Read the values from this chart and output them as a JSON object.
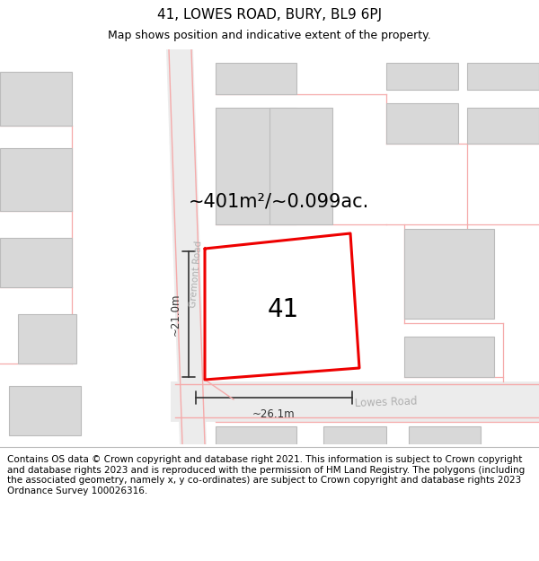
{
  "title": "41, LOWES ROAD, BURY, BL9 6PJ",
  "subtitle": "Map shows position and indicative extent of the property.",
  "footer": "Contains OS data © Crown copyright and database right 2021. This information is subject to Crown copyright and database rights 2023 and is reproduced with the permission of HM Land Registry. The polygons (including the associated geometry, namely x, y co-ordinates) are subject to Crown copyright and database rights 2023 Ordnance Survey 100026316.",
  "area_label": "~401m²/~0.099ac.",
  "number_label": "41",
  "width_label": "~26.1m",
  "height_label": "~21.0m",
  "road_label_lowes": "Lowes Road",
  "road_label_gremont": "Gremont Road",
  "map_bg": "#f7f7f7",
  "road_fill": "#ececec",
  "building_fill": "#d8d8d8",
  "building_edge": "#bbbbbb",
  "red_line_color": "#ee0000",
  "pink_line_color": "#f5aaaa",
  "dark_line_color": "#333333",
  "title_fontsize": 11,
  "subtitle_fontsize": 9,
  "footer_fontsize": 7.5,
  "area_label_fontsize": 15,
  "number_label_fontsize": 20
}
